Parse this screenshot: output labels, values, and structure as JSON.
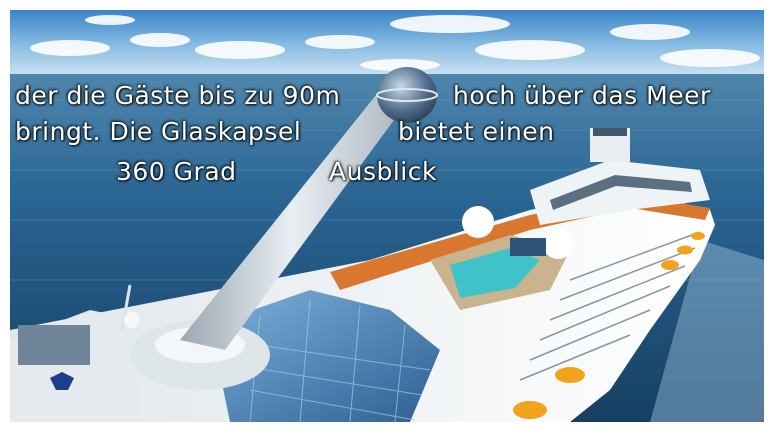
{
  "caption": {
    "line1_part1": "der die Gäste bis zu 90m",
    "line1_part2": "hoch über das Meer",
    "line2_part1": "bringt. Die Glaskapsel",
    "line2_part2": "bietet einen",
    "line3_part1": "360 Grad",
    "line3_part2": "Ausblick"
  },
  "colors": {
    "sky_top": "#3c86c8",
    "sky_horizon": "#cfe3f0",
    "sea": "#1f5a86",
    "hull": "#f2f6f8",
    "deck_orange": "#d9772e",
    "glass": "#4d82b5",
    "pool": "#3fc3c8"
  }
}
